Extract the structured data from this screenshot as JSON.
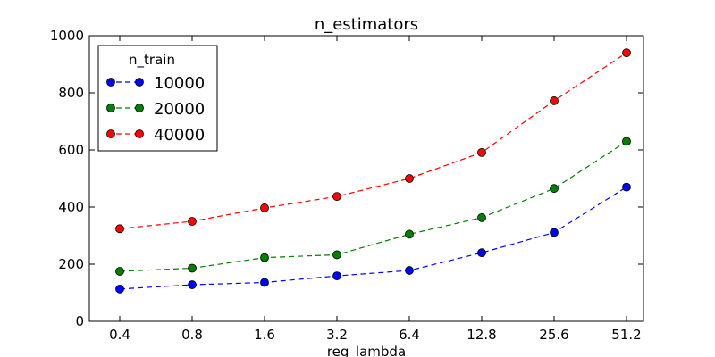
{
  "chart_data": {
    "type": "line",
    "title": "n_estimators",
    "xlabel": "reg_lambda",
    "ylabel": "",
    "categories": [
      "0.4",
      "0.8",
      "1.6",
      "3.2",
      "6.4",
      "12.8",
      "25.6",
      "51.2"
    ],
    "ylim": [
      0,
      1000
    ],
    "yticks": [
      "0",
      "200",
      "400",
      "600",
      "800",
      "1000"
    ],
    "grid": false,
    "legend": {
      "title": "n_train",
      "position": "top-left"
    },
    "series": [
      {
        "name": "10000",
        "color": "#0000ff",
        "values": [
          113,
          128,
          136,
          159,
          178,
          240,
          311,
          470
        ]
      },
      {
        "name": "20000",
        "color": "#007f00",
        "values": [
          175,
          186,
          223,
          233,
          305,
          363,
          465,
          630
        ]
      },
      {
        "name": "40000",
        "color": "#ff0000",
        "values": [
          324,
          350,
          397,
          437,
          500,
          591,
          772,
          940
        ]
      }
    ]
  }
}
